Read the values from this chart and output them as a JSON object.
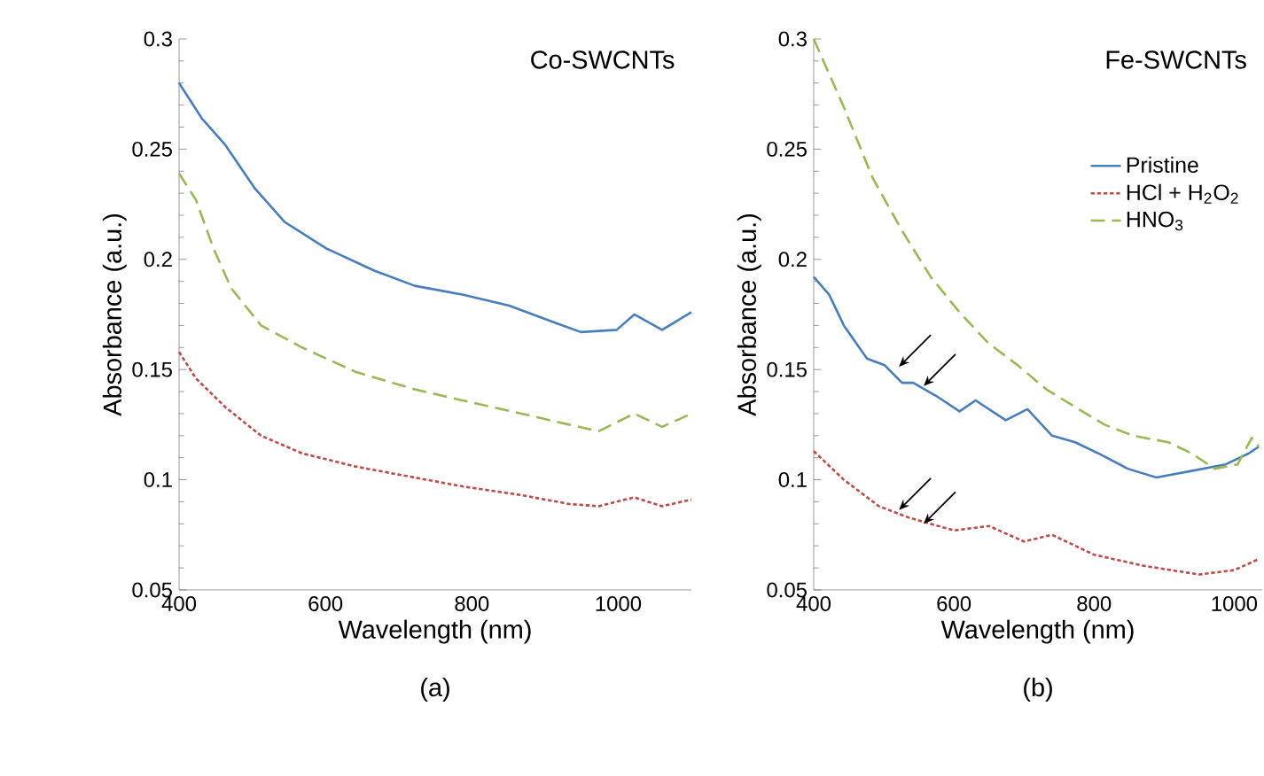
{
  "chart_data": [
    {
      "type": "line",
      "title": "Co-SWCNTs",
      "xlabel": "Wavelength (nm)",
      "ylabel": "Absorbance (a.u.)",
      "annotations": [
        "(a)"
      ],
      "xlim": [
        400,
        1100
      ],
      "xticks": [
        400,
        600,
        800,
        1000
      ],
      "ylim": [
        0.05,
        0.3
      ],
      "yticks": [
        0.05,
        0.1,
        0.15,
        0.2,
        0.25,
        0.3
      ],
      "series": [
        {
          "color": "#4a7ebb",
          "line_style": "solid",
          "x": [
            400,
            431,
            463,
            504,
            544,
            601,
            666,
            722,
            787,
            851,
            916,
            949,
            998,
            1022,
            1060,
            1100
          ],
          "values": [
            0.28,
            0.264,
            0.252,
            0.232,
            0.217,
            0.205,
            0.195,
            0.188,
            0.184,
            0.179,
            0.171,
            0.167,
            0.168,
            0.175,
            0.168,
            0.176
          ]
        },
        {
          "color": "#be4b48",
          "line_style": "dotted",
          "x": [
            400,
            423,
            463,
            512,
            568,
            641,
            722,
            787,
            868,
            933,
            973,
            1022,
            1060,
            1100
          ],
          "values": [
            0.158,
            0.146,
            0.133,
            0.12,
            0.112,
            0.106,
            0.101,
            0.097,
            0.093,
            0.089,
            0.088,
            0.092,
            0.088,
            0.091
          ]
        },
        {
          "color": "#98b954",
          "line_style": "dashed",
          "x": [
            400,
            423,
            447,
            471,
            512,
            568,
            641,
            722,
            787,
            868,
            933,
            973,
            1022,
            1060,
            1100
          ],
          "values": [
            0.239,
            0.227,
            0.205,
            0.187,
            0.17,
            0.16,
            0.149,
            0.141,
            0.136,
            0.13,
            0.125,
            0.122,
            0.13,
            0.124,
            0.13
          ]
        }
      ]
    },
    {
      "type": "line",
      "title": "Fe-SWCNTs",
      "xlabel": "Wavelength (nm)",
      "ylabel": "Absorbance (a.u.)",
      "annotations": [
        "(b)"
      ],
      "legend": "top right",
      "xlim": [
        400,
        1040
      ],
      "xticks": [
        400,
        600,
        800,
        1000
      ],
      "ylim": [
        0.05,
        0.3
      ],
      "yticks": [
        0.05,
        0.1,
        0.15,
        0.2,
        0.25,
        0.3
      ],
      "series": [
        {
          "name": "Pristine",
          "color": "#4a7ebb",
          "line_style": "solid",
          "x": [
            400,
            422,
            443,
            476,
            501,
            526,
            542,
            575,
            608,
            631,
            674,
            705,
            740,
            773,
            806,
            848,
            889,
            939,
            988,
            1021,
            1035
          ],
          "values": [
            0.192,
            0.184,
            0.17,
            0.155,
            0.152,
            0.144,
            0.144,
            0.138,
            0.131,
            0.136,
            0.127,
            0.132,
            0.12,
            0.117,
            0.112,
            0.105,
            0.101,
            0.104,
            0.107,
            0.112,
            0.115
          ]
        },
        {
          "name": "HCl + H$_{2}$O$_{2}$",
          "color": "#be4b48",
          "line_style": "dotted",
          "x": [
            400,
            443,
            493,
            534,
            600,
            650,
            700,
            740,
            800,
            870,
            950,
            1000,
            1035
          ],
          "values": [
            0.113,
            0.1,
            0.088,
            0.083,
            0.077,
            0.079,
            0.072,
            0.075,
            0.066,
            0.061,
            0.057,
            0.059,
            0.064
          ]
        },
        {
          "name": "HNO$_{3}$",
          "color": "#98b954",
          "line_style": "dashed",
          "x": [
            400,
            443,
            484,
            526,
            567,
            608,
            649,
            691,
            732,
            773,
            815,
            856,
            906,
            939,
            972,
            1005,
            1025,
            1035
          ],
          "values": [
            0.3,
            0.269,
            0.237,
            0.213,
            0.192,
            0.176,
            0.162,
            0.152,
            0.141,
            0.133,
            0.125,
            0.12,
            0.117,
            0.112,
            0.105,
            0.107,
            0.119,
            0.115
          ]
        }
      ]
    }
  ]
}
